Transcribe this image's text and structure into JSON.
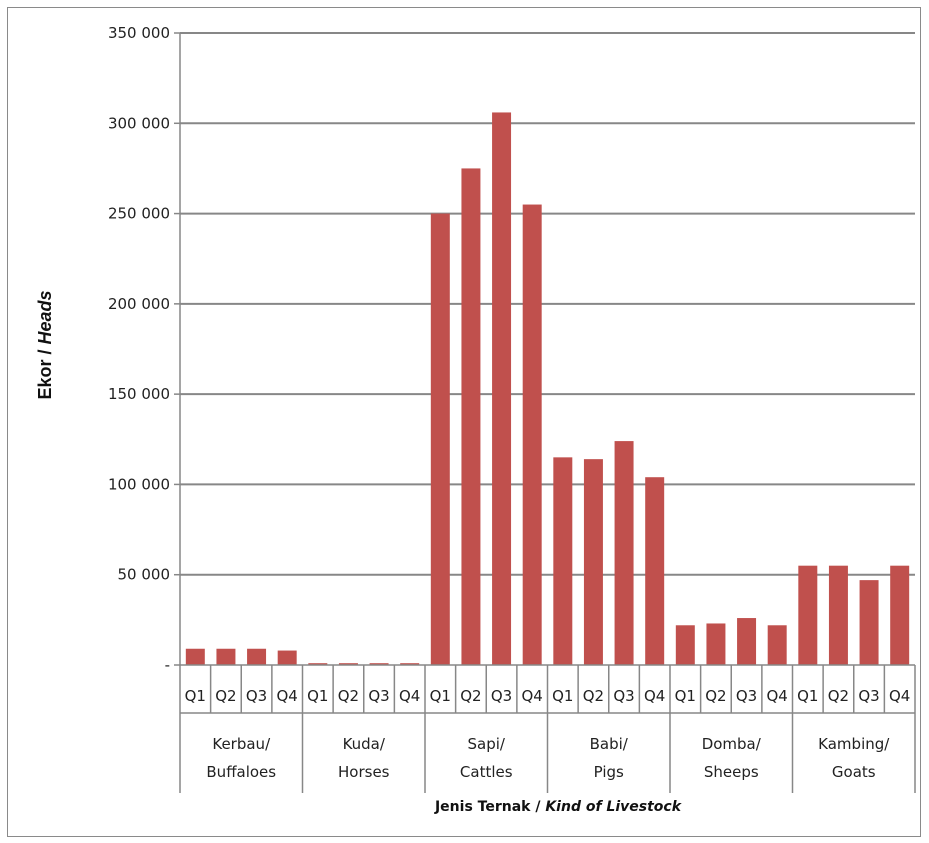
{
  "chart_data": {
    "type": "bar",
    "ylabel_main": "Ekor / ",
    "ylabel_italic": "Heads",
    "xlabel_main": "Jenis Ternak / ",
    "xlabel_italic": "Kind of Livestock",
    "ylim": [
      0,
      350000
    ],
    "yticks": [
      {
        "value": 0,
        "label": "-"
      },
      {
        "value": 50000,
        "label": "50 000"
      },
      {
        "value": 100000,
        "label": "100 000"
      },
      {
        "value": 150000,
        "label": "150 000"
      },
      {
        "value": 200000,
        "label": "200 000"
      },
      {
        "value": 250000,
        "label": "250 000"
      },
      {
        "value": 300000,
        "label": "300 000"
      },
      {
        "value": 350000,
        "label": "350 000"
      }
    ],
    "grid": true,
    "bar_color": "#C0504D",
    "groups": [
      {
        "line1": "Kerbau/",
        "line2": "Buffaloes",
        "quarters": [
          "Q1",
          "Q2",
          "Q3",
          "Q4"
        ],
        "values": [
          9000,
          9000,
          9000,
          8000
        ]
      },
      {
        "line1": "Kuda/",
        "line2": "Horses",
        "quarters": [
          "Q1",
          "Q2",
          "Q3",
          "Q4"
        ],
        "values": [
          1000,
          1000,
          1000,
          1000
        ]
      },
      {
        "line1": "Sapi/",
        "line2": "Cattles",
        "quarters": [
          "Q1",
          "Q2",
          "Q3",
          "Q4"
        ],
        "values": [
          250000,
          275000,
          306000,
          255000
        ]
      },
      {
        "line1": "Babi/",
        "line2": "Pigs",
        "quarters": [
          "Q1",
          "Q2",
          "Q3",
          "Q4"
        ],
        "values": [
          115000,
          114000,
          124000,
          104000
        ]
      },
      {
        "line1": "Domba/",
        "line2": "Sheeps",
        "quarters": [
          "Q1",
          "Q2",
          "Q3",
          "Q4"
        ],
        "values": [
          22000,
          23000,
          26000,
          22000
        ]
      },
      {
        "line1": "Kambing/",
        "line2": "Goats",
        "quarters": [
          "Q1",
          "Q2",
          "Q3",
          "Q4"
        ],
        "values": [
          55000,
          55000,
          47000,
          55000
        ]
      }
    ]
  }
}
